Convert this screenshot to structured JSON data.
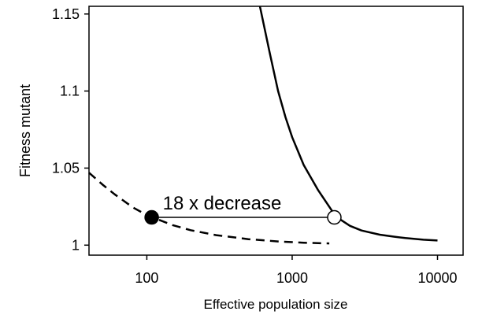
{
  "chart_data": {
    "type": "line",
    "title": "",
    "xlabel": "Effective population size",
    "ylabel": "Fitness mutant",
    "x_scale": "log",
    "xlim": [
      40,
      15000
    ],
    "ylim": [
      0.9935,
      1.155
    ],
    "x_ticks": [
      {
        "value": 100,
        "label": "100"
      },
      {
        "value": 1000,
        "label": "1000"
      },
      {
        "value": 10000,
        "label": "10000"
      }
    ],
    "y_ticks": [
      {
        "value": 1,
        "label": "1"
      },
      {
        "value": 1.05,
        "label": "1.05"
      },
      {
        "value": 1.1,
        "label": "1.1"
      },
      {
        "value": 1.15,
        "label": "1.15"
      }
    ],
    "grid": false,
    "legend": "none",
    "series": [
      {
        "style": "solid",
        "color": "#000000",
        "x": [
          600,
          700,
          800,
          900,
          1000,
          1200,
          1500,
          2000,
          2500,
          3000,
          4000,
          5000,
          6000,
          8000,
          10000
        ],
        "y": [
          1.155,
          1.125,
          1.1,
          1.083,
          1.07,
          1.052,
          1.036,
          1.0185,
          1.0125,
          1.0095,
          1.0068,
          1.0055,
          1.0046,
          1.0035,
          1.003
        ]
      },
      {
        "style": "dashed",
        "color": "#000000",
        "x": [
          40,
          50,
          60,
          80,
          100,
          150,
          200,
          300,
          500,
          800,
          1200,
          1800
        ],
        "y": [
          1.047,
          1.039,
          1.033,
          1.0245,
          1.0195,
          1.013,
          1.0097,
          1.0065,
          1.0039,
          1.0024,
          1.0016,
          1.0011
        ]
      }
    ],
    "points": [
      {
        "x": 108,
        "y": 1.018,
        "style": "filled"
      },
      {
        "x": 1950,
        "y": 1.018,
        "style": "open"
      }
    ],
    "annotation": {
      "text": "18 x decrease",
      "x_start": 108,
      "x_end": 1950,
      "y": 1.018
    }
  }
}
